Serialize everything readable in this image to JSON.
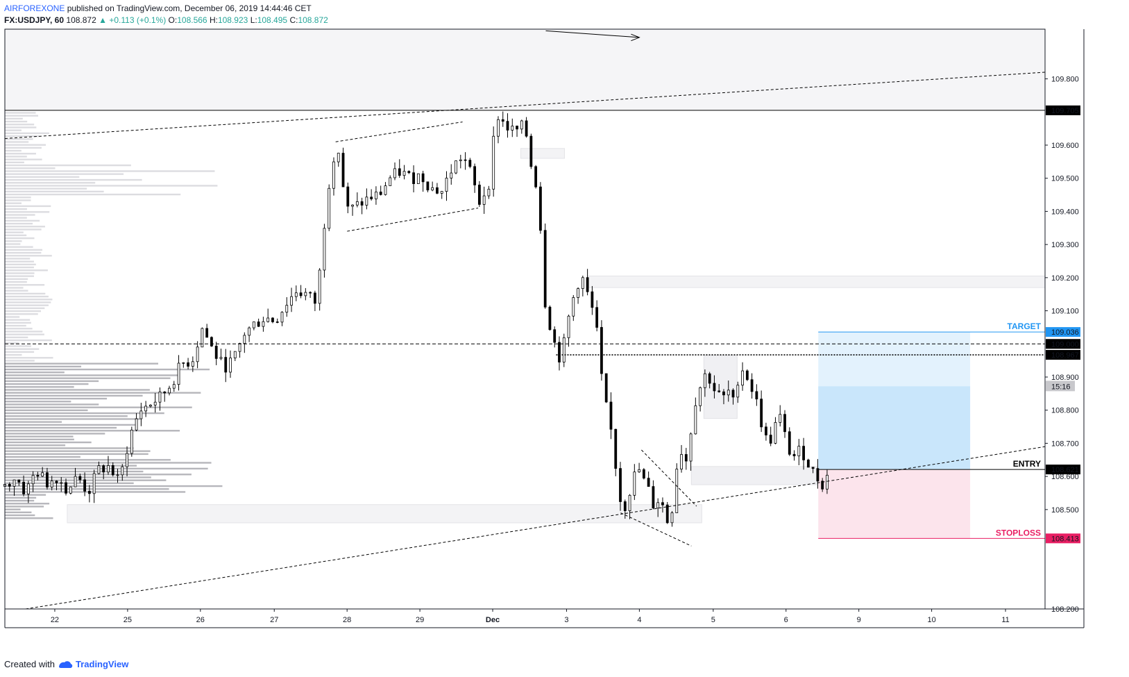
{
  "header": {
    "author": "AIRFOREXONE",
    "published": "published on TradingView.com, December 06, 2019 14:44:46 CET",
    "symbol": "FX:USDJPY, 60",
    "last": "108.872",
    "change": "+0.113 (+0.1%)",
    "o_label": "O:",
    "o": "108.566",
    "h_label": "H:",
    "h": "108.923",
    "l_label": "L:",
    "l": "108.495",
    "c_label": "C:",
    "c": "108.872"
  },
  "footer": {
    "created_with": "Created with",
    "brand": "TradingView"
  },
  "colors": {
    "target": "#2196f3",
    "stoploss": "#e91e63",
    "profit_zone": "#bbdefb",
    "loss_zone": "#fce4ec",
    "candle": "#000000"
  },
  "chart_data": {
    "type": "candlestick",
    "y_range": [
      108.2,
      109.95
    ],
    "y_ticks": [
      "109.800",
      "109.600",
      "109.500",
      "109.400",
      "109.300",
      "109.200",
      "109.100",
      "108.900",
      "108.800",
      "108.700",
      "108.600",
      "108.500",
      "108.200"
    ],
    "x_ticks": [
      {
        "label": "22",
        "pos": 0.048
      },
      {
        "label": "25",
        "pos": 0.118
      },
      {
        "label": "26",
        "pos": 0.188
      },
      {
        "label": "27",
        "pos": 0.259
      },
      {
        "label": "28",
        "pos": 0.329
      },
      {
        "label": "29",
        "pos": 0.399
      },
      {
        "label": "Dec",
        "pos": 0.469,
        "bold": true
      },
      {
        "label": "3",
        "pos": 0.54
      },
      {
        "label": "4",
        "pos": 0.61
      },
      {
        "label": "5",
        "pos": 0.681
      },
      {
        "label": "6",
        "pos": 0.751
      },
      {
        "label": "9",
        "pos": 0.821
      },
      {
        "label": "10",
        "pos": 0.891
      },
      {
        "label": "11",
        "pos": 0.962
      }
    ],
    "levels": [
      {
        "name": "resistance",
        "value": "109.705",
        "price": 109.705,
        "style": "solid",
        "tag": "dark"
      },
      {
        "name": "target",
        "label": "TARGET",
        "value": "109.036",
        "price": 109.036,
        "style": "solid",
        "tag": "blue"
      },
      {
        "name": "level-109",
        "value": "109.000",
        "price": 109.0,
        "style": "dashed",
        "tag": "dark"
      },
      {
        "name": "level-108967",
        "value": "108.967",
        "price": 108.967,
        "style": "dotted",
        "tag": "dark"
      },
      {
        "name": "entry",
        "label": "ENTRY",
        "value": "108.621",
        "price": 108.621,
        "style": "solid",
        "tag": "dark"
      },
      {
        "name": "stoploss",
        "label": "STOPLOSS",
        "value": "108.413",
        "price": 108.413,
        "style": "solid",
        "tag": "pink"
      }
    ],
    "countdown": {
      "label": "15:16",
      "price": 108.872
    },
    "close_path": [
      [
        0.0,
        108.57
      ],
      [
        0.01,
        108.6
      ],
      [
        0.02,
        108.55
      ],
      [
        0.03,
        108.62
      ],
      [
        0.04,
        108.58
      ],
      [
        0.05,
        108.6
      ],
      [
        0.06,
        108.56
      ],
      [
        0.07,
        108.6
      ],
      [
        0.08,
        108.55
      ],
      [
        0.09,
        108.62
      ],
      [
        0.1,
        108.63
      ],
      [
        0.11,
        108.58
      ],
      [
        0.12,
        108.72
      ],
      [
        0.13,
        108.8
      ],
      [
        0.14,
        108.82
      ],
      [
        0.15,
        108.84
      ],
      [
        0.16,
        108.88
      ],
      [
        0.17,
        108.94
      ],
      [
        0.18,
        108.95
      ],
      [
        0.19,
        109.05
      ],
      [
        0.2,
        108.98
      ],
      [
        0.21,
        108.93
      ],
      [
        0.22,
        108.95
      ],
      [
        0.23,
        109.03
      ],
      [
        0.24,
        109.06
      ],
      [
        0.25,
        109.08
      ],
      [
        0.26,
        109.07
      ],
      [
        0.27,
        109.12
      ],
      [
        0.28,
        109.16
      ],
      [
        0.29,
        109.15
      ],
      [
        0.3,
        109.12
      ],
      [
        0.305,
        109.3
      ],
      [
        0.31,
        109.45
      ],
      [
        0.315,
        109.56
      ],
      [
        0.32,
        109.6
      ],
      [
        0.325,
        109.48
      ],
      [
        0.33,
        109.4
      ],
      [
        0.34,
        109.42
      ],
      [
        0.35,
        109.44
      ],
      [
        0.36,
        109.45
      ],
      [
        0.37,
        109.5
      ],
      [
        0.38,
        109.52
      ],
      [
        0.39,
        109.5
      ],
      [
        0.4,
        109.51
      ],
      [
        0.41,
        109.47
      ],
      [
        0.42,
        109.46
      ],
      [
        0.43,
        109.53
      ],
      [
        0.44,
        109.57
      ],
      [
        0.45,
        109.5
      ],
      [
        0.455,
        109.42
      ],
      [
        0.46,
        109.45
      ],
      [
        0.465,
        109.48
      ],
      [
        0.47,
        109.62
      ],
      [
        0.475,
        109.7
      ],
      [
        0.48,
        109.66
      ],
      [
        0.49,
        109.64
      ],
      [
        0.5,
        109.66
      ],
      [
        0.505,
        109.55
      ],
      [
        0.51,
        109.5
      ],
      [
        0.515,
        109.35
      ],
      [
        0.52,
        109.1
      ],
      [
        0.525,
        109.05
      ],
      [
        0.53,
        108.98
      ],
      [
        0.535,
        108.95
      ],
      [
        0.54,
        109.05
      ],
      [
        0.545,
        109.12
      ],
      [
        0.55,
        109.18
      ],
      [
        0.555,
        109.2
      ],
      [
        0.56,
        109.15
      ],
      [
        0.565,
        109.1
      ],
      [
        0.57,
        109.02
      ],
      [
        0.575,
        108.85
      ],
      [
        0.58,
        108.78
      ],
      [
        0.585,
        108.7
      ],
      [
        0.59,
        108.55
      ],
      [
        0.595,
        108.5
      ],
      [
        0.6,
        108.55
      ],
      [
        0.605,
        108.6
      ],
      [
        0.61,
        108.62
      ],
      [
        0.615,
        108.58
      ],
      [
        0.62,
        108.55
      ],
      [
        0.625,
        108.5
      ],
      [
        0.63,
        108.55
      ],
      [
        0.635,
        108.47
      ],
      [
        0.64,
        108.46
      ],
      [
        0.645,
        108.62
      ],
      [
        0.65,
        108.68
      ],
      [
        0.655,
        108.65
      ],
      [
        0.66,
        108.75
      ],
      [
        0.665,
        108.85
      ],
      [
        0.67,
        108.88
      ],
      [
        0.675,
        108.92
      ],
      [
        0.68,
        108.87
      ],
      [
        0.685,
        108.85
      ],
      [
        0.69,
        108.83
      ],
      [
        0.695,
        108.86
      ],
      [
        0.7,
        108.82
      ],
      [
        0.705,
        108.9
      ],
      [
        0.71,
        108.93
      ],
      [
        0.715,
        108.89
      ],
      [
        0.72,
        108.85
      ],
      [
        0.725,
        108.8
      ],
      [
        0.73,
        108.72
      ],
      [
        0.735,
        108.7
      ],
      [
        0.74,
        108.75
      ],
      [
        0.745,
        108.78
      ],
      [
        0.75,
        108.72
      ],
      [
        0.755,
        108.67
      ],
      [
        0.76,
        108.66
      ],
      [
        0.765,
        108.68
      ],
      [
        0.77,
        108.66
      ],
      [
        0.775,
        108.62
      ],
      [
        0.78,
        108.6
      ],
      [
        0.785,
        108.58
      ],
      [
        0.79,
        108.57
      ],
      [
        0.795,
        108.87
      ]
    ]
  }
}
